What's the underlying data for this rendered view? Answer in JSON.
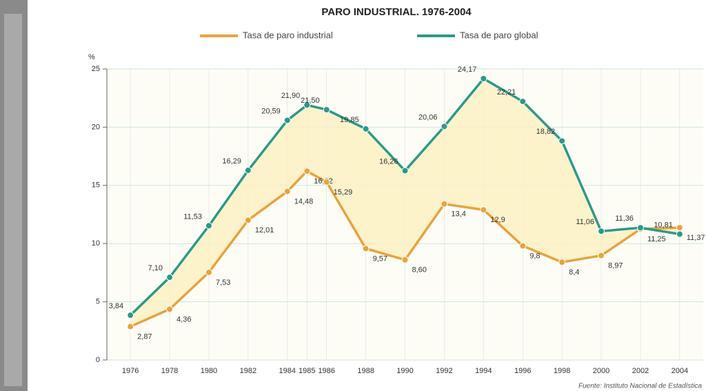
{
  "chart_data": {
    "type": "line",
    "title": "PARO INDUSTRIAL. 1976-2004",
    "y_label": "%",
    "source": "Fuente: Instituto Nacional de Estadística",
    "x": [
      1976,
      1978,
      1980,
      1982,
      1984,
      1985,
      1986,
      1988,
      1990,
      1992,
      1994,
      1996,
      1998,
      2000,
      2002,
      2004
    ],
    "xlim": [
      1974.8,
      2005.2
    ],
    "xticks": [
      1976,
      1978,
      1980,
      1982,
      1984,
      1985,
      1986,
      1988,
      1990,
      1992,
      1994,
      1996,
      1998,
      2000,
      2002,
      2004
    ],
    "ylim": [
      0,
      25
    ],
    "yticks": [
      0,
      5,
      10,
      15,
      20,
      25
    ],
    "grid": true,
    "legend": "top",
    "series": [
      {
        "name": "Tasa de paro industrial",
        "color": "#e8a33a",
        "values": [
          2.87,
          4.36,
          7.53,
          12.01,
          14.48,
          16.22,
          15.29,
          9.57,
          8.6,
          13.4,
          12.9,
          9.8,
          8.4,
          8.97,
          11.25,
          11.37
        ],
        "value_labels": [
          "2,87",
          "4,36",
          "7,53",
          "12,01",
          "14,48",
          "16,22",
          "15,29",
          "9,57",
          "8,60",
          "13,4",
          "12,9",
          "9,8",
          "8,4",
          "8,97",
          "11,25",
          "11,37"
        ]
      },
      {
        "name": "Tasa de paro global",
        "color": "#2a9a8a",
        "values": [
          3.84,
          7.1,
          11.53,
          16.29,
          20.59,
          21.9,
          21.5,
          19.85,
          16.26,
          20.06,
          24.17,
          22.21,
          18.82,
          11.06,
          11.36,
          10.81
        ],
        "value_labels": [
          "3,84",
          "7,10",
          "11,53",
          "16,29",
          "20,59",
          "21,90",
          "21,50",
          "19,85",
          "16,26",
          "20,06",
          "24,17",
          "22,21",
          "18,82",
          "11,06",
          "11,36",
          "10,81"
        ]
      }
    ]
  }
}
